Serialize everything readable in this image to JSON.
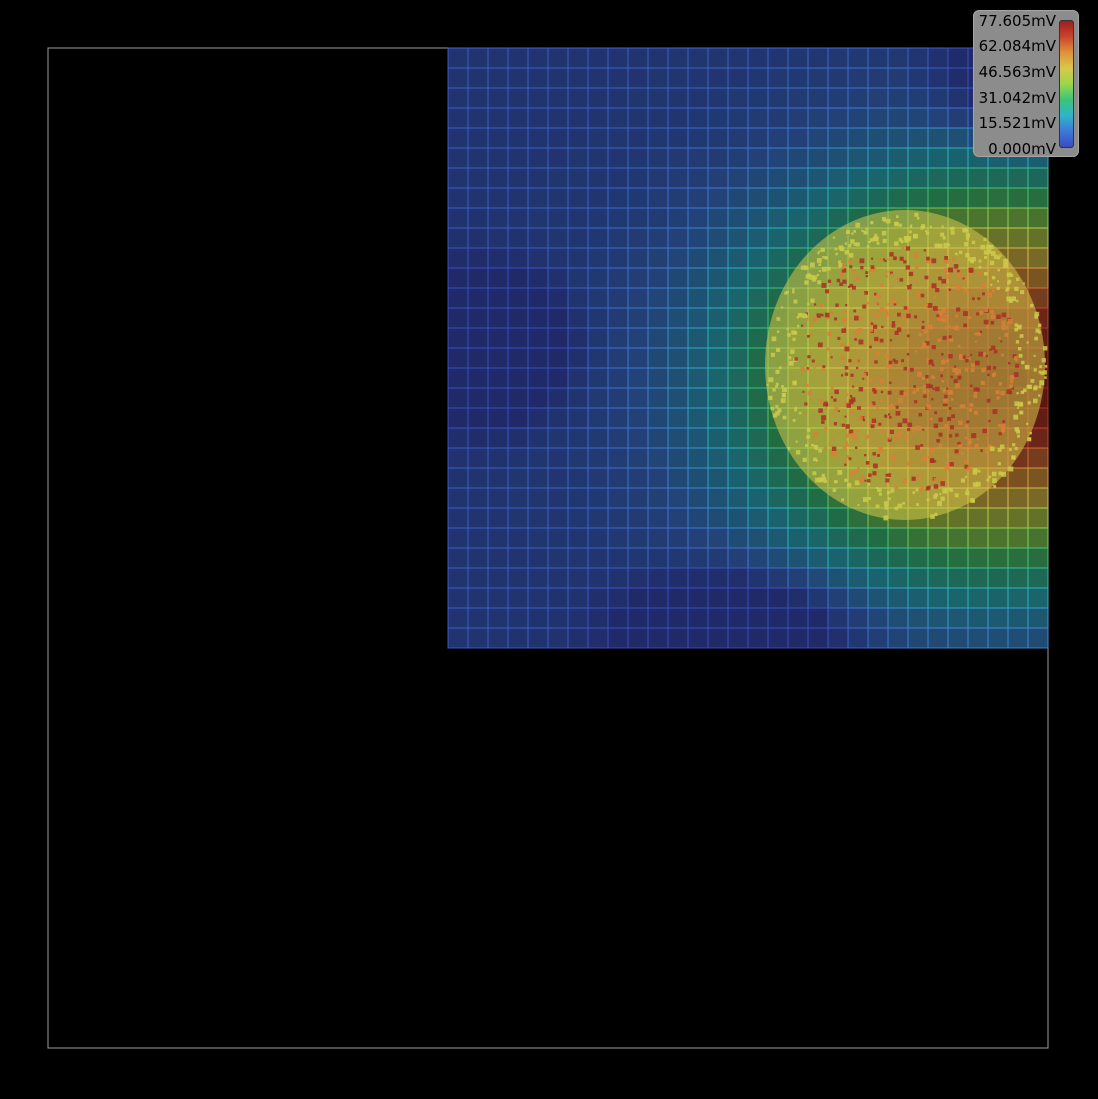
{
  "chart_data": {
    "type": "heatmap",
    "title": "",
    "unit": "mV",
    "value_range": [
      0.0,
      77.605
    ],
    "colorbar": {
      "tick_labels": [
        "77.605mV",
        "62.084mV",
        "46.563mV",
        "31.042mV",
        "15.521mV",
        "0.000mV"
      ],
      "tick_values": [
        77.605,
        62.084,
        46.563,
        31.042,
        15.521,
        0.0
      ],
      "colors": [
        "#3b4cc0",
        "#3f78d8",
        "#2fb5c8",
        "#3cc47a",
        "#9bd64a",
        "#d9c84a",
        "#e0913a",
        "#c8452e",
        "#9a1f1f"
      ],
      "placement": "top-right"
    },
    "grid": true,
    "grid_size": [
      30,
      30
    ],
    "occupied_region": "top-right quadrant",
    "hotspot": {
      "peak_value": 77.605,
      "location": "right edge, upper-middle rows"
    },
    "cold_spots": [
      {
        "location": "left edge, rows 12-17",
        "value": 0.0
      },
      {
        "location": "bottom rows, middle columns",
        "value": 0.0
      }
    ]
  }
}
